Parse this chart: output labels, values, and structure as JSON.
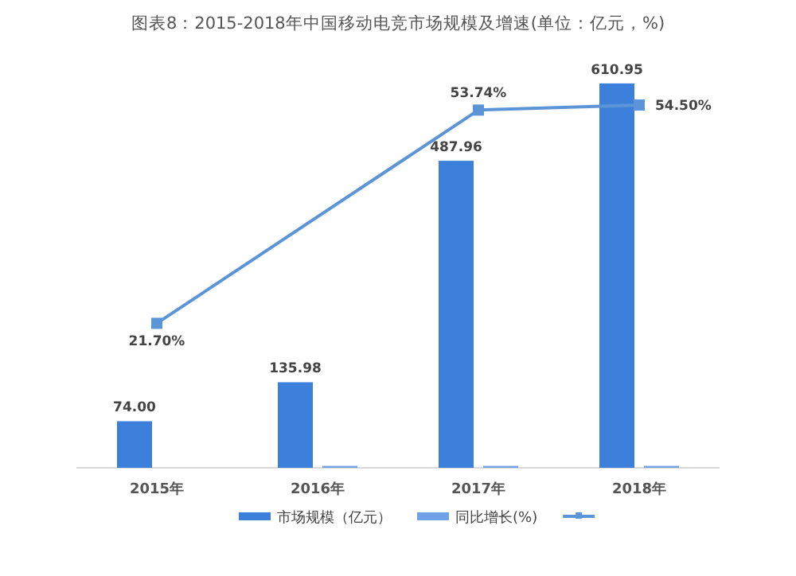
{
  "chart_data": {
    "type": "bar",
    "title": "图表8：2015-2018年中国移动电竞市场规模及增速(单位：亿元，%)",
    "categories": [
      "2015年",
      "2016年",
      "2017年",
      "2018年"
    ],
    "series": [
      {
        "name": "市场规模（亿元）",
        "color": "#3c80dc",
        "values": [
          74.0,
          135.98,
          487.96,
          610.95
        ],
        "value_labels": [
          "74.00",
          "135.98",
          "487.96",
          "610.95"
        ]
      },
      {
        "name": "同比增长(%)",
        "color": "#6fa2e6",
        "values": [
          null,
          3,
          3,
          3
        ]
      },
      {
        "type": "line",
        "axis": "y2",
        "color": "#5b95d8",
        "values": [
          21.7,
          null,
          53.74,
          54.5
        ],
        "value_labels": [
          "21.70%",
          null,
          "53.74%",
          "54.50%"
        ]
      }
    ],
    "marker": "square",
    "legend": "bottom"
  }
}
